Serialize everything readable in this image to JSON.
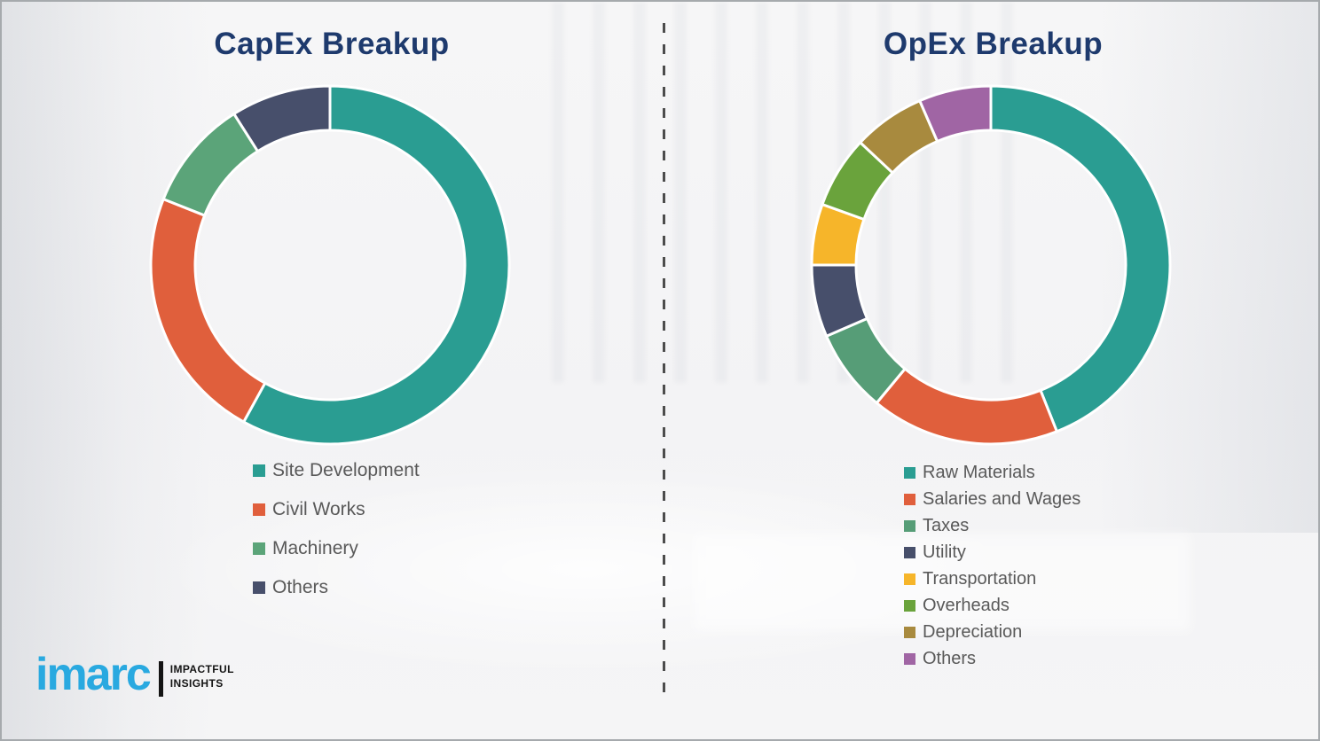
{
  "frame": {
    "background_color": "#f4f4f6",
    "border_color": "#a6aaad",
    "divider_color": "#4c4c4c"
  },
  "style": {
    "title_color": "#1e3a6d",
    "legend_text_color": "#595959"
  },
  "chart_data": [
    {
      "type": "pie",
      "donut": true,
      "title": "CapEx Breakup",
      "categories": [
        "Site Development",
        "Civil Works",
        "Machinery",
        "Others"
      ],
      "values": [
        58,
        23,
        10,
        9
      ],
      "colors": [
        "#2a9d92",
        "#e05f3c",
        "#5ba479",
        "#474f6b"
      ],
      "start_angle_deg": 0,
      "direction": "clockwise",
      "legend_position": "below-left",
      "data_labels": "none"
    },
    {
      "type": "pie",
      "donut": true,
      "title": "OpEx Breakup",
      "categories": [
        "Raw Materials",
        "Salaries and Wages",
        "Taxes",
        "Utility",
        "Transportation",
        "Overheads",
        "Depreciation",
        "Others"
      ],
      "values": [
        44,
        17,
        7.5,
        6.5,
        5.5,
        6.5,
        6.5,
        6.5
      ],
      "colors": [
        "#2a9d92",
        "#e05f3c",
        "#569d77",
        "#474f6b",
        "#f6b52a",
        "#6aa33c",
        "#a88a3e",
        "#a065a4"
      ],
      "start_angle_deg": 0,
      "direction": "clockwise",
      "legend_position": "below-left",
      "data_labels": "none"
    }
  ],
  "logo": {
    "brand": "imarc",
    "tagline_line1": "IMPACTFUL",
    "tagline_line2": "INSIGHTS",
    "brand_color": "#29a9e0",
    "tagline_color": "#141414"
  }
}
